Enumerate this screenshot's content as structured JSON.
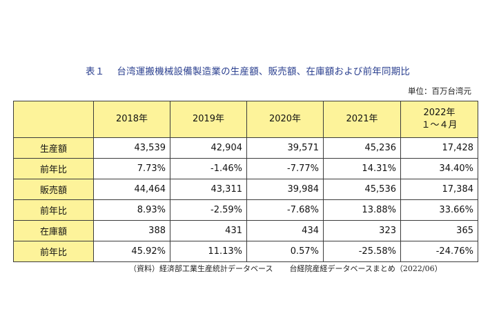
{
  "title": {
    "label": "表１",
    "text": "台湾運搬機械設備製造業の生産額、販売額、在庫額および前年同期比"
  },
  "unit": "単位：百万台湾元",
  "table": {
    "columns": [
      "2018年",
      "2019年",
      "2020年",
      "2021年"
    ],
    "last_column": {
      "line1": "2022年",
      "line2": "１～４月"
    },
    "rows": [
      {
        "label": "生産額",
        "values": [
          "43,539",
          "42,904",
          "39,571",
          "45,236",
          "17,428"
        ]
      },
      {
        "label": "前年比",
        "values": [
          "7.73%",
          "-1.46%",
          "-7.77%",
          "14.31%",
          "34.40%"
        ]
      },
      {
        "label": "販売額",
        "values": [
          "44,464",
          "43,311",
          "39,984",
          "45,536",
          "17,384"
        ]
      },
      {
        "label": "前年比",
        "values": [
          "8.93%",
          "-2.59%",
          "-7.68%",
          "13.88%",
          "33.66%"
        ]
      },
      {
        "label": "在庫額",
        "values": [
          "388",
          "431",
          "434",
          "323",
          "365"
        ]
      },
      {
        "label": "前年比",
        "values": [
          "45.92%",
          "11.13%",
          "0.57%",
          "-25.58%",
          "-24.76%"
        ]
      }
    ]
  },
  "source": {
    "left": "（資料）経済部工業生産統計データベース",
    "right": "台経院産経データベースまとめ（2022/06）"
  },
  "colors": {
    "header_bg": "#fdf39a",
    "title": "#2a3f8f",
    "border": "#3a3a3a"
  }
}
